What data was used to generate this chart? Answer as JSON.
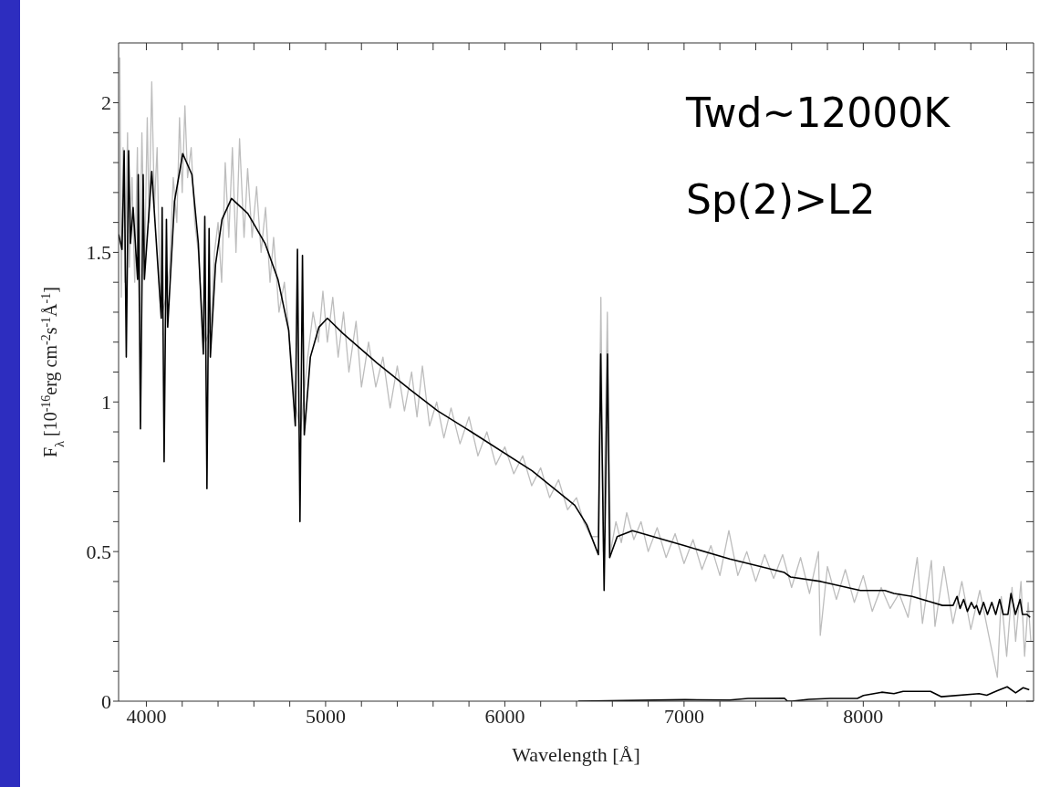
{
  "chart_data": {
    "type": "line",
    "xlabel": "Wavelength [Å]",
    "ylabel": "F$_{λ}$ [10$^{-16}$erg cm$^{-2}$s$^{-1}$Å$^{-1}$]",
    "annotations": [
      "Twd~12000K",
      "Sp(2)>L2"
    ],
    "xlim": [
      3845,
      8950
    ],
    "ylim": [
      0,
      2.2
    ],
    "xticks": [
      4000,
      {
        "value": 4200,
        "label": null
      },
      {
        "value": 4400,
        "label": null
      },
      {
        "value": 4600,
        "label": null
      },
      {
        "value": 4800,
        "label": null
      },
      5000,
      {
        "value": 5200,
        "label": null
      },
      {
        "value": 5400,
        "label": null
      },
      {
        "value": 5600,
        "label": null
      },
      {
        "value": 5800,
        "label": null
      },
      6000,
      {
        "value": 6200,
        "label": null
      },
      {
        "value": 6400,
        "label": null
      },
      {
        "value": 6600,
        "label": null
      },
      {
        "value": 6800,
        "label": null
      },
      7000,
      {
        "value": 7200,
        "label": null
      },
      {
        "value": 7400,
        "label": null
      },
      {
        "value": 7600,
        "label": null
      },
      {
        "value": 7800,
        "label": null
      },
      8000,
      {
        "value": 8200,
        "label": null
      },
      {
        "value": 8400,
        "label": null
      },
      {
        "value": 8600,
        "label": null
      },
      {
        "value": 8800,
        "label": null
      }
    ],
    "yticks": [
      0,
      {
        "value": 0.1,
        "label": null
      },
      {
        "value": 0.2,
        "label": null
      },
      {
        "value": 0.3,
        "label": null
      },
      {
        "value": 0.4,
        "label": null
      },
      0.5,
      {
        "value": 0.6,
        "label": null
      },
      {
        "value": 0.7,
        "label": null
      },
      {
        "value": 0.8,
        "label": null
      },
      {
        "value": 0.9,
        "label": null
      },
      1,
      {
        "value": 1.1,
        "label": null
      },
      {
        "value": 1.2,
        "label": null
      },
      {
        "value": 1.3,
        "label": null
      },
      {
        "value": 1.4,
        "label": null
      },
      1.5,
      {
        "value": 1.6,
        "label": null
      },
      {
        "value": 1.7,
        "label": null
      },
      {
        "value": 1.8,
        "label": null
      },
      {
        "value": 1.9,
        "label": null
      },
      2,
      {
        "value": 2.1,
        "label": null
      }
    ],
    "series": [
      {
        "color": "#bdbdbd",
        "x": [
          3848,
          3852,
          3860,
          3870,
          3880,
          3895,
          3905,
          3920,
          3935,
          3950,
          3960,
          3975,
          3990,
          4005,
          4015,
          4030,
          4045,
          4060,
          4075,
          4090,
          4110,
          4130,
          4150,
          4170,
          4185,
          4200,
          4215,
          4230,
          4250,
          4270,
          4290,
          4310,
          4330,
          4360,
          4380,
          4400,
          4420,
          4440,
          4460,
          4480,
          4500,
          4520,
          4545,
          4565,
          4590,
          4615,
          4640,
          4665,
          4690,
          4710,
          4740,
          4770,
          4800,
          4830,
          4860,
          4900,
          4930,
          4960,
          4985,
          5010,
          5040,
          5070,
          5100,
          5130,
          5170,
          5200,
          5240,
          5280,
          5320,
          5360,
          5400,
          5440,
          5480,
          5510,
          5540,
          5580,
          5620,
          5660,
          5700,
          5750,
          5800,
          5850,
          5900,
          5950,
          6000,
          6050,
          6100,
          6150,
          6200,
          6250,
          6300,
          6350,
          6400,
          6440,
          6480,
          6520,
          6536,
          6550,
          6572,
          6590,
          6620,
          6650,
          6680,
          6720,
          6760,
          6800,
          6850,
          6900,
          6950,
          7000,
          7050,
          7100,
          7150,
          7200,
          7250,
          7300,
          7350,
          7400,
          7450,
          7500,
          7550,
          7600,
          7650,
          7700,
          7750,
          7760,
          7800,
          7850,
          7900,
          7950,
          8000,
          8050,
          8100,
          8150,
          8200,
          8250,
          8301,
          8330,
          8380,
          8400,
          8450,
          8500,
          8550,
          8600,
          8650,
          8700,
          8748,
          8770,
          8800,
          8830,
          8850,
          8880,
          8900,
          8920,
          8935
        ],
        "values": [
          1.55,
          2.15,
          1.35,
          1.85,
          1.4,
          1.9,
          1.45,
          1.75,
          1.4,
          1.85,
          1.3,
          1.9,
          1.45,
          1.95,
          1.6,
          2.07,
          1.65,
          1.85,
          1.4,
          1.3,
          1.35,
          1.45,
          1.75,
          1.6,
          1.95,
          1.7,
          1.99,
          1.75,
          1.85,
          1.6,
          1.5,
          1.3,
          1.2,
          1.25,
          1.5,
          1.6,
          1.4,
          1.8,
          1.55,
          1.85,
          1.5,
          1.88,
          1.55,
          1.78,
          1.55,
          1.72,
          1.5,
          1.65,
          1.4,
          1.55,
          1.3,
          1.4,
          1.2,
          1.0,
          0.9,
          1.15,
          1.3,
          1.2,
          1.37,
          1.2,
          1.35,
          1.15,
          1.3,
          1.1,
          1.27,
          1.05,
          1.2,
          1.05,
          1.15,
          0.98,
          1.12,
          0.97,
          1.1,
          0.95,
          1.12,
          0.92,
          1.0,
          0.88,
          0.98,
          0.86,
          0.95,
          0.82,
          0.9,
          0.79,
          0.85,
          0.76,
          0.82,
          0.72,
          0.78,
          0.68,
          0.74,
          0.64,
          0.68,
          0.6,
          0.55,
          0.55,
          1.35,
          0.5,
          1.3,
          0.5,
          0.6,
          0.53,
          0.63,
          0.54,
          0.6,
          0.5,
          0.58,
          0.48,
          0.56,
          0.46,
          0.54,
          0.44,
          0.52,
          0.42,
          0.57,
          0.42,
          0.5,
          0.4,
          0.49,
          0.41,
          0.49,
          0.38,
          0.48,
          0.36,
          0.5,
          0.22,
          0.45,
          0.34,
          0.44,
          0.33,
          0.42,
          0.3,
          0.38,
          0.31,
          0.36,
          0.28,
          0.48,
          0.26,
          0.47,
          0.25,
          0.45,
          0.26,
          0.4,
          0.24,
          0.37,
          0.22,
          0.08,
          0.35,
          0.15,
          0.38,
          0.2,
          0.4,
          0.15,
          0.33,
          0.2
        ]
      },
      {
        "color": "#000000",
        "x": [
          3845,
          3864,
          3876,
          3888,
          3901,
          3911,
          3926,
          3951,
          3955,
          3967,
          3982,
          3989,
          4030,
          4083,
          4088,
          4099,
          4112,
          4119,
          4157,
          4203,
          4254,
          4290,
          4318,
          4326,
          4338,
          4350,
          4357,
          4386,
          4422,
          4475,
          4566,
          4662,
          4734,
          4794,
          4831,
          4843,
          4857,
          4871,
          4881,
          4915,
          4963,
          5010,
          5095,
          5287,
          5474,
          5626,
          5813,
          6152,
          6390,
          6457,
          6522,
          6535,
          6554,
          6573,
          6585,
          6627,
          6712,
          7000,
          7255,
          7560,
          7594,
          7764,
          7984,
          8120,
          8171,
          8273,
          8442,
          8501,
          8523,
          8540,
          8560,
          8581,
          8603,
          8620,
          8632,
          8649,
          8671,
          8693,
          8717,
          8739,
          8761,
          8781,
          8807,
          8824,
          8849,
          8875,
          8888,
          8914,
          8931
        ],
        "values": [
          1.56,
          1.51,
          1.84,
          1.15,
          1.84,
          1.53,
          1.65,
          1.41,
          1.76,
          0.91,
          1.76,
          1.41,
          1.77,
          1.28,
          1.65,
          0.8,
          1.61,
          1.25,
          1.67,
          1.83,
          1.76,
          1.53,
          1.16,
          1.62,
          0.71,
          1.58,
          1.15,
          1.46,
          1.61,
          1.68,
          1.63,
          1.53,
          1.41,
          1.24,
          0.92,
          1.51,
          0.6,
          1.49,
          0.89,
          1.15,
          1.25,
          1.28,
          1.23,
          1.13,
          1.04,
          0.97,
          0.9,
          0.77,
          0.655,
          0.59,
          0.49,
          1.16,
          0.37,
          1.16,
          0.48,
          0.55,
          0.57,
          0.52,
          0.475,
          0.43,
          0.415,
          0.4,
          0.37,
          0.37,
          0.36,
          0.35,
          0.32,
          0.32,
          0.35,
          0.31,
          0.34,
          0.3,
          0.33,
          0.31,
          0.32,
          0.29,
          0.33,
          0.29,
          0.33,
          0.29,
          0.34,
          0.29,
          0.29,
          0.36,
          0.29,
          0.34,
          0.29,
          0.29,
          0.28
        ]
      },
      {
        "color": "#000000",
        "x": [
          6410,
          7006,
          7255,
          7357,
          7560,
          7577,
          7602,
          7696,
          7815,
          7967,
          8001,
          8103,
          8171,
          8222,
          8375,
          8434,
          8646,
          8689,
          8748,
          8803,
          8850,
          8892,
          8926
        ],
        "values": [
          0.0,
          0.005,
          0.004,
          0.009,
          0.01,
          0.0,
          0.0,
          0.006,
          0.009,
          0.009,
          0.019,
          0.03,
          0.025,
          0.033,
          0.033,
          0.015,
          0.025,
          0.02,
          0.035,
          0.048,
          0.028,
          0.045,
          0.038
        ]
      }
    ]
  }
}
